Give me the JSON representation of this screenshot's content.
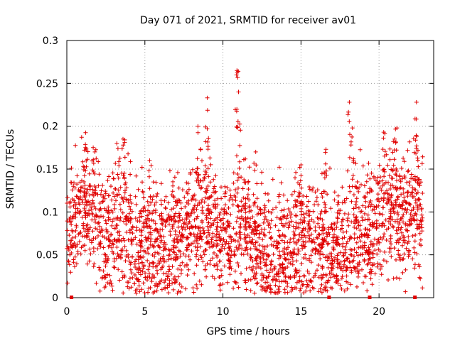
{
  "chart_data": {
    "type": "scatter",
    "title": "Day 071 of 2021, SRMTID for receiver av01",
    "xlabel": "GPS time / hours",
    "ylabel": "SRMTID / TECUs",
    "xlim": [
      0,
      23.5
    ],
    "ylim": [
      0,
      0.3
    ],
    "xticks": [
      0,
      5,
      10,
      15,
      20
    ],
    "xtick_labels": [
      "0",
      "5",
      "10",
      "15",
      "20"
    ],
    "yticks": [
      0,
      0.05,
      0.1,
      0.15,
      0.2,
      0.25,
      0.3
    ],
    "ytick_labels": [
      "0",
      "0.05",
      "0.1",
      "0.15",
      "0.2",
      "0.25",
      "0.3"
    ],
    "grid": true,
    "marker": "+",
    "color": "#e00000",
    "gap_marks_x": [
      0.3,
      16.8,
      19.4,
      22.3
    ],
    "series": [
      {
        "name": "SRMTID",
        "trend_hours": [
          0,
          1,
          1.5,
          2,
          2.5,
          3,
          3.5,
          4,
          4.5,
          5,
          5.5,
          6,
          7,
          8,
          8.5,
          9,
          9.5,
          10,
          10.5,
          11,
          11.5,
          12,
          13,
          14,
          15,
          16,
          17,
          17.5,
          18,
          18.5,
          19,
          20,
          20.5,
          21,
          21.5,
          22,
          22.5,
          22.8
        ],
        "trend_values": [
          0.085,
          0.1,
          0.11,
          0.09,
          0.07,
          0.08,
          0.09,
          0.075,
          0.065,
          0.05,
          0.07,
          0.055,
          0.07,
          0.085,
          0.09,
          0.1,
          0.08,
          0.075,
          0.07,
          0.085,
          0.08,
          0.065,
          0.05,
          0.06,
          0.07,
          0.07,
          0.06,
          0.055,
          0.065,
          0.08,
          0.075,
          0.09,
          0.1,
          0.11,
          0.09,
          0.1,
          0.1,
          0.09
        ],
        "spread": 0.035,
        "peaks": [
          {
            "x": 1.2,
            "y": 0.175
          },
          {
            "x": 1.8,
            "y": 0.17
          },
          {
            "x": 3.2,
            "y": 0.18
          },
          {
            "x": 3.6,
            "y": 0.185
          },
          {
            "x": 5.3,
            "y": 0.16
          },
          {
            "x": 8.4,
            "y": 0.2
          },
          {
            "x": 9.0,
            "y": 0.233
          },
          {
            "x": 10.9,
            "y": 0.265
          },
          {
            "x": 11.0,
            "y": 0.24
          },
          {
            "x": 12.1,
            "y": 0.17
          },
          {
            "x": 15.0,
            "y": 0.155
          },
          {
            "x": 16.6,
            "y": 0.173
          },
          {
            "x": 18.1,
            "y": 0.228
          },
          {
            "x": 18.3,
            "y": 0.198
          },
          {
            "x": 20.3,
            "y": 0.193
          },
          {
            "x": 21.0,
            "y": 0.185
          },
          {
            "x": 22.4,
            "y": 0.228
          }
        ],
        "lows": [
          {
            "x": 4.4,
            "y": 0.008
          },
          {
            "x": 8.3,
            "y": 0.015
          },
          {
            "x": 11.0,
            "y": 0.012
          },
          {
            "x": 13.2,
            "y": 0.02
          },
          {
            "x": 17.6,
            "y": 0.01
          }
        ]
      }
    ]
  }
}
